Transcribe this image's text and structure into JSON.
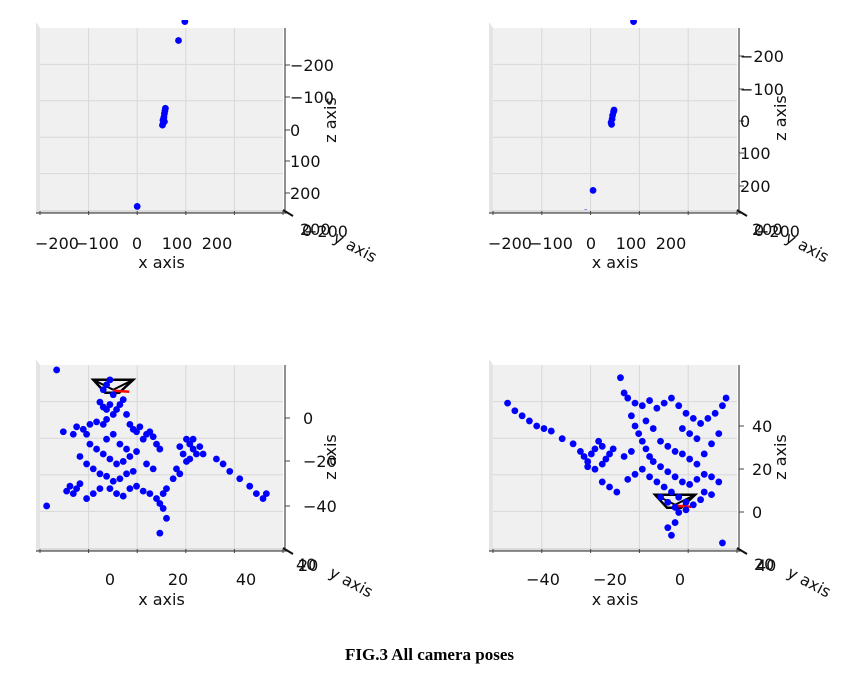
{
  "caption": "FIG.3 All camera poses",
  "colors": {
    "points": "#0000ff",
    "camera": "#000000",
    "camera_axis": "#ff0000",
    "pane": "#f0f0f0",
    "grid": "#d8d8d8"
  },
  "chart_data": [
    {
      "type": "scatter",
      "xlabel": "x axis",
      "zlabel": "z axis",
      "ylabel": "y axis",
      "xlim": [
        -250,
        250
      ],
      "zlim": [
        -250,
        260
      ],
      "xticks": [
        "−200",
        "−100",
        "0",
        "100",
        "200"
      ],
      "zticks": [
        "−200",
        "−100",
        "0",
        "100",
        "200"
      ],
      "depth_ticks": [
        "200",
        "0",
        "−200"
      ],
      "points": [
        [
          -50,
          -240
        ],
        [
          3,
          2
        ],
        [
          5,
          10
        ],
        [
          6,
          20
        ],
        [
          7,
          28
        ],
        [
          8,
          35
        ],
        [
          4,
          -5
        ],
        [
          2,
          -12
        ],
        [
          6,
          -2
        ],
        [
          35,
          225
        ],
        [
          48,
          278
        ]
      ],
      "cameras": []
    },
    {
      "type": "scatter",
      "xlabel": "x axis",
      "zlabel": "z axis",
      "ylabel": "y axis",
      "xlim": [
        -250,
        250
      ],
      "zlim": [
        -250,
        260
      ],
      "xticks": [
        "−200",
        "−100",
        "0",
        "100",
        "200"
      ],
      "zticks": [
        "−200",
        "−100",
        "0",
        "100",
        "200"
      ],
      "depth_ticks": [
        "200",
        "0",
        "−200"
      ],
      "points": [
        [
          -60,
          -258
        ],
        [
          -45,
          -195
        ],
        [
          -8,
          -5
        ],
        [
          -6,
          5
        ],
        [
          -5,
          15
        ],
        [
          -3,
          25
        ],
        [
          -2,
          30
        ],
        [
          -7,
          -10
        ],
        [
          38,
          278
        ]
      ],
      "cameras": []
    },
    {
      "type": "scatter",
      "xlabel": "x axis",
      "zlabel": "z axis",
      "ylabel": "y axis",
      "xlim": [
        -20,
        53
      ],
      "zlim": [
        -62,
        12
      ],
      "xticks": [
        "0",
        "20",
        "40"
      ],
      "zticks": [
        "0",
        "−20",
        "−40"
      ],
      "depth_ticks": [
        "40",
        "20"
      ],
      "points": [
        [
          -15,
          10
        ],
        [
          -18,
          -45
        ],
        [
          -13,
          -15
        ],
        [
          -10,
          -16
        ],
        [
          -9,
          -13
        ],
        [
          -7,
          -14
        ],
        [
          -6,
          -16
        ],
        [
          -5,
          -12
        ],
        [
          -3,
          -11
        ],
        [
          -1,
          -12
        ],
        [
          0,
          -10
        ],
        [
          2,
          -8
        ],
        [
          3,
          -6
        ],
        [
          4,
          -4
        ],
        [
          5,
          -2
        ],
        [
          6,
          -8
        ],
        [
          7,
          -12
        ],
        [
          8,
          -14
        ],
        [
          9,
          -15
        ],
        [
          10,
          -13
        ],
        [
          11,
          -18
        ],
        [
          12,
          -16
        ],
        [
          13,
          -15
        ],
        [
          14,
          -17
        ],
        [
          15,
          -20
        ],
        [
          16,
          -22
        ],
        [
          -5,
          -20
        ],
        [
          -3,
          -22
        ],
        [
          -1,
          -24
        ],
        [
          1,
          -26
        ],
        [
          3,
          -28
        ],
        [
          5,
          -27
        ],
        [
          7,
          -25
        ],
        [
          9,
          -23
        ],
        [
          -4,
          -30
        ],
        [
          -2,
          -32
        ],
        [
          0,
          -33
        ],
        [
          2,
          -35
        ],
        [
          4,
          -34
        ],
        [
          6,
          -32
        ],
        [
          8,
          -31
        ],
        [
          -8,
          -36
        ],
        [
          -9,
          -38
        ],
        [
          -10,
          -40
        ],
        [
          -11,
          -37
        ],
        [
          -12,
          -39
        ],
        [
          -6,
          -42
        ],
        [
          -4,
          -40
        ],
        [
          -2,
          -38
        ],
        [
          1,
          -38
        ],
        [
          3,
          -40
        ],
        [
          5,
          -41
        ],
        [
          7,
          -38
        ],
        [
          9,
          -37
        ],
        [
          11,
          -39
        ],
        [
          13,
          -40
        ],
        [
          15,
          -42
        ],
        [
          16,
          -44
        ],
        [
          17,
          -40
        ],
        [
          18,
          -38
        ],
        [
          17,
          -46
        ],
        [
          18,
          -50
        ],
        [
          16,
          -56
        ],
        [
          -8,
          -25
        ],
        [
          -6,
          -28
        ],
        [
          0,
          -18
        ],
        [
          2,
          -16
        ],
        [
          4,
          -20
        ],
        [
          6,
          -22
        ],
        [
          12,
          -28
        ],
        [
          14,
          -30
        ],
        [
          24,
          -18
        ],
        [
          25,
          -20
        ],
        [
          26,
          -22
        ],
        [
          27,
          -24
        ],
        [
          25,
          -26
        ],
        [
          23,
          -24
        ],
        [
          22,
          -21
        ],
        [
          26,
          -18
        ],
        [
          28,
          -21
        ],
        [
          29,
          -24
        ],
        [
          24,
          -27
        ],
        [
          21,
          -30
        ],
        [
          20,
          -34
        ],
        [
          22,
          -32
        ],
        [
          33,
          -26
        ],
        [
          35,
          -28
        ],
        [
          37,
          -31
        ],
        [
          40,
          -34
        ],
        [
          43,
          -37
        ],
        [
          45,
          -40
        ],
        [
          47,
          -42
        ],
        [
          48,
          -40
        ],
        [
          -2,
          -3
        ],
        [
          -1,
          -5
        ],
        [
          0,
          -6
        ],
        [
          1,
          -4
        ],
        [
          2,
          0
        ],
        [
          -1,
          2
        ],
        [
          0,
          4
        ],
        [
          1,
          6
        ]
      ],
      "cameras": [
        {
          "x": 2,
          "z": 2
        }
      ]
    },
    {
      "type": "scatter",
      "xlabel": "x axis",
      "zlabel": "z axis",
      "ylabel": "y axis",
      "xlim": [
        -52,
        15
      ],
      "zlim": [
        -12,
        60
      ],
      "xticks": [
        "−40",
        "−20",
        "0"
      ],
      "zticks": [
        "40",
        "20",
        "0"
      ],
      "depth_ticks": [
        "20",
        "40"
      ],
      "points": [
        [
          -48,
          45
        ],
        [
          -46,
          42
        ],
        [
          -44,
          40
        ],
        [
          -42,
          38
        ],
        [
          -40,
          36
        ],
        [
          -38,
          35
        ],
        [
          -36,
          34
        ],
        [
          -33,
          31
        ],
        [
          -30,
          29
        ],
        [
          -28,
          26
        ],
        [
          -27,
          24
        ],
        [
          -26,
          22
        ],
        [
          -25,
          25
        ],
        [
          -24,
          27
        ],
        [
          -23,
          30
        ],
        [
          -22,
          28
        ],
        [
          -26,
          20
        ],
        [
          -24,
          19
        ],
        [
          -22,
          21
        ],
        [
          -21,
          23
        ],
        [
          -20,
          25
        ],
        [
          -19,
          27
        ],
        [
          -17,
          55
        ],
        [
          -16,
          49
        ],
        [
          -15,
          47
        ],
        [
          -13,
          45
        ],
        [
          -11,
          44
        ],
        [
          -9,
          46
        ],
        [
          -7,
          43
        ],
        [
          -5,
          45
        ],
        [
          -3,
          47
        ],
        [
          -1,
          44
        ],
        [
          1,
          41
        ],
        [
          3,
          39
        ],
        [
          5,
          37
        ],
        [
          7,
          39
        ],
        [
          9,
          41
        ],
        [
          11,
          44
        ],
        [
          12,
          47
        ],
        [
          -14,
          40
        ],
        [
          -13,
          36
        ],
        [
          -12,
          33
        ],
        [
          -11,
          30
        ],
        [
          -10,
          27
        ],
        [
          -9,
          24
        ],
        [
          -8,
          22
        ],
        [
          -6,
          20
        ],
        [
          -4,
          18
        ],
        [
          -2,
          16
        ],
        [
          0,
          14
        ],
        [
          2,
          13
        ],
        [
          4,
          15
        ],
        [
          6,
          17
        ],
        [
          8,
          16
        ],
        [
          10,
          14
        ],
        [
          -15,
          15
        ],
        [
          -13,
          17
        ],
        [
          -11,
          19
        ],
        [
          -9,
          16
        ],
        [
          -7,
          14
        ],
        [
          -5,
          12
        ],
        [
          -3,
          10
        ],
        [
          -1,
          8
        ],
        [
          1,
          6
        ],
        [
          3,
          5
        ],
        [
          5,
          7
        ],
        [
          -6,
          30
        ],
        [
          -4,
          28
        ],
        [
          -2,
          26
        ],
        [
          0,
          25
        ],
        [
          2,
          23
        ],
        [
          4,
          21
        ],
        [
          6,
          25
        ],
        [
          8,
          29
        ],
        [
          10,
          33
        ],
        [
          4,
          31
        ],
        [
          2,
          33
        ],
        [
          0,
          35
        ],
        [
          -6,
          8
        ],
        [
          -4,
          6
        ],
        [
          -2,
          4
        ],
        [
          -1,
          2
        ],
        [
          1,
          3
        ],
        [
          -3,
          -7
        ],
        [
          -4,
          -4
        ],
        [
          -2,
          -2
        ],
        [
          11,
          -10
        ],
        [
          -18,
          10
        ],
        [
          -20,
          12
        ],
        [
          -22,
          14
        ],
        [
          -16,
          24
        ],
        [
          -14,
          26
        ],
        [
          -10,
          38
        ],
        [
          -8,
          35
        ],
        [
          6,
          10
        ],
        [
          8,
          9
        ]
      ],
      "cameras": [
        {
          "x": -2,
          "z": 5
        }
      ]
    }
  ]
}
